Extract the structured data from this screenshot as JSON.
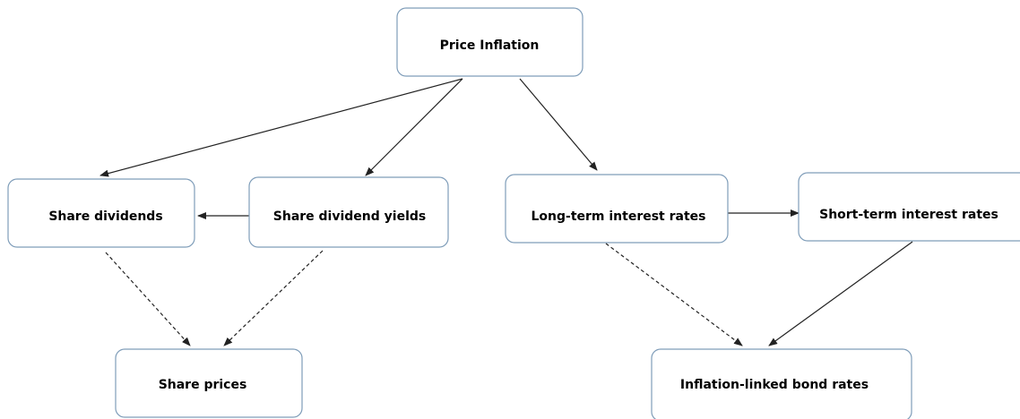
{
  "nodes": [
    {
      "label": "Price Inflation"
    },
    {
      "label": "Share dividends"
    },
    {
      "label": "Share dividend yields"
    },
    {
      "label": "Long-term interest rates"
    },
    {
      "label": "Short-term interest rates"
    },
    {
      "label": "Share prices"
    },
    {
      "label": "Inflation-linked bond rates"
    }
  ]
}
